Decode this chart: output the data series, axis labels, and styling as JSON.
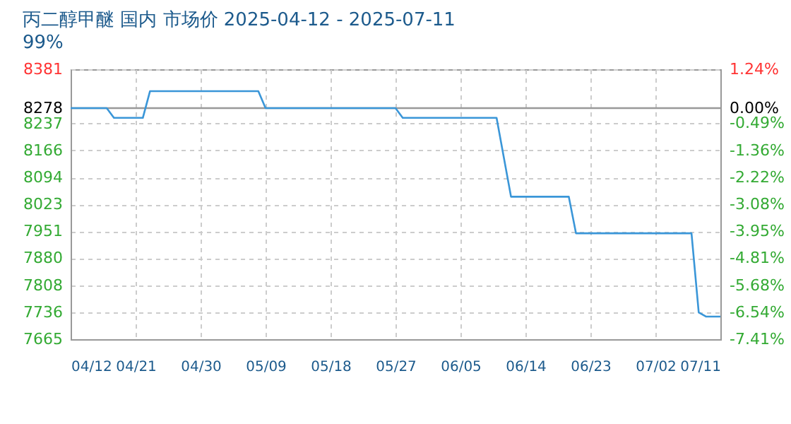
{
  "chart_data": {
    "type": "line",
    "title": "丙二醇甲醚 国内 市场价 2025-04-12 - 2025-07-11",
    "subtitle": "99%",
    "x": [
      "2025-04-12",
      "2025-04-17",
      "2025-04-18",
      "2025-04-22",
      "2025-04-23",
      "2025-05-08",
      "2025-05-09",
      "2025-05-27",
      "2025-05-28",
      "2025-06-10",
      "2025-06-12",
      "2025-06-20",
      "2025-06-21",
      "2025-07-07",
      "2025-07-08",
      "2025-07-09",
      "2025-07-11"
    ],
    "series": [
      {
        "color": "#3a96d8",
        "values": [
          8278,
          8278,
          8252,
          8252,
          8323,
          8323,
          8278,
          8278,
          8252,
          8252,
          8043,
          8043,
          7946,
          7946,
          7736,
          7725,
          7725
        ]
      }
    ],
    "xlim": [
      "2025-04-12",
      "2025-07-11"
    ],
    "xticks": [
      {
        "value": "2025-04-12",
        "label": "04/12"
      },
      {
        "value": "2025-04-21",
        "label": "04/21"
      },
      {
        "value": "2025-04-30",
        "label": "04/30"
      },
      {
        "value": "2025-05-09",
        "label": "05/09"
      },
      {
        "value": "2025-05-18",
        "label": "05/18"
      },
      {
        "value": "2025-05-27",
        "label": "05/27"
      },
      {
        "value": "2025-06-05",
        "label": "06/05"
      },
      {
        "value": "2025-06-14",
        "label": "06/14"
      },
      {
        "value": "2025-06-23",
        "label": "06/23"
      },
      {
        "value": "2025-07-02",
        "label": "07/02"
      },
      {
        "value": "2025-07-11",
        "label": "07/11"
      }
    ],
    "ylim": [
      7665,
      8381
    ],
    "yticks": [
      8381,
      8278,
      8237,
      8166,
      8094,
      8023,
      7951,
      7880,
      7808,
      7736,
      7665
    ],
    "y2lim": [
      -7.41,
      1.24
    ],
    "y2ticks": [
      {
        "value": 1.24,
        "label": "1.24%"
      },
      {
        "value": 0,
        "label": "0.00%"
      },
      {
        "value": -0.49,
        "label": "-0.49%"
      },
      {
        "value": -1.36,
        "label": "-1.36%"
      },
      {
        "value": -2.22,
        "label": "-2.22%"
      },
      {
        "value": -3.08,
        "label": "-3.08%"
      },
      {
        "value": -3.95,
        "label": "-3.95%"
      },
      {
        "value": -4.81,
        "label": "-4.81%"
      },
      {
        "value": -5.68,
        "label": "-5.68%"
      },
      {
        "value": -6.54,
        "label": "-6.54%"
      },
      {
        "value": -7.41,
        "label": "-7.41%"
      }
    ],
    "ref_lines": [
      {
        "axis": "y",
        "value": 8278,
        "color": "#999999"
      }
    ],
    "grid": true,
    "marker": "none",
    "line_style": "solid"
  }
}
